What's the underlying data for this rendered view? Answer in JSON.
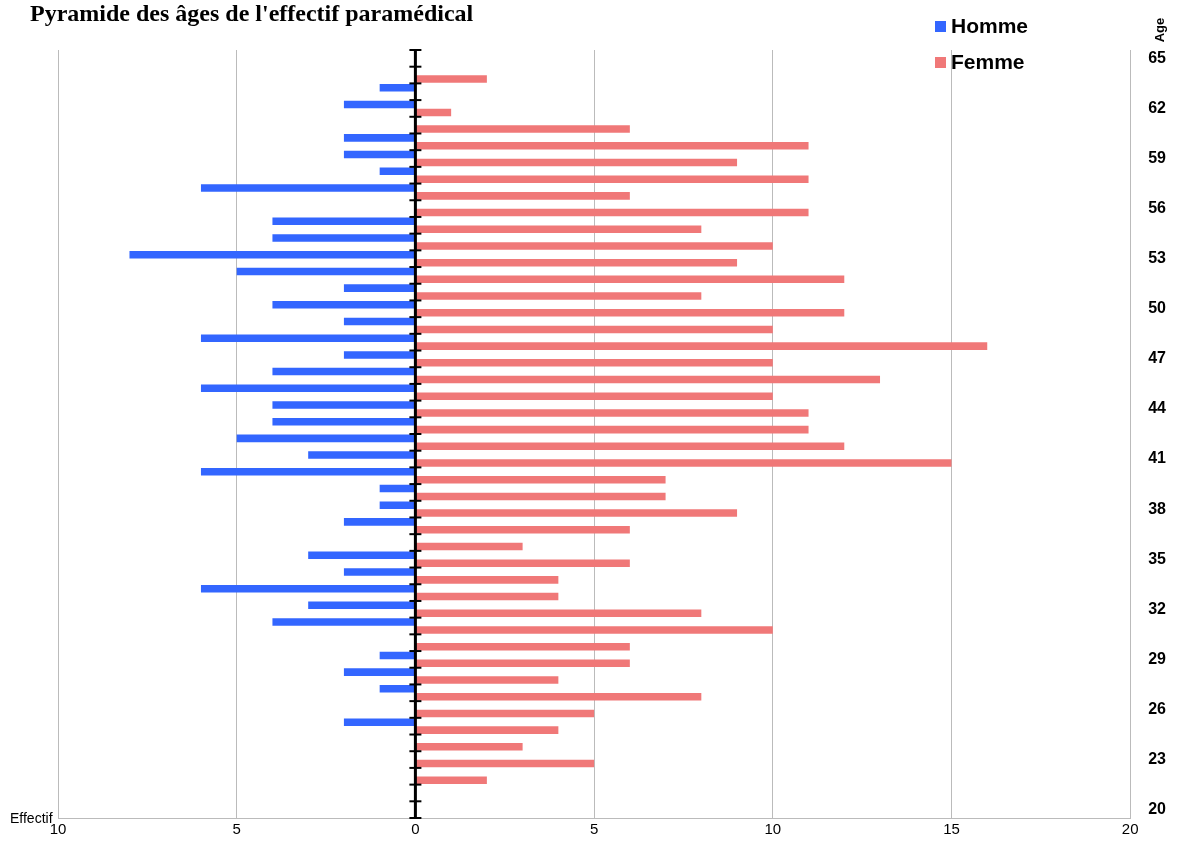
{
  "chart_data": {
    "type": "bar",
    "orientation": "horizontal",
    "title": "Pyramide des âges de l'effectif paramédical",
    "xlabel": "Effectif",
    "ylabel": "Age",
    "categories": [
      "65",
      null,
      null,
      "62",
      null,
      null,
      "59",
      null,
      null,
      "56",
      null,
      null,
      "53",
      null,
      null,
      "50",
      null,
      null,
      "47",
      null,
      null,
      "44",
      null,
      null,
      "41",
      null,
      null,
      "38",
      null,
      null,
      "35",
      null,
      null,
      "32",
      null,
      null,
      "29",
      null,
      null,
      "26",
      null,
      null,
      "23",
      null,
      null,
      "20"
    ],
    "series": [
      {
        "name": "Homme",
        "color": "#3366ff",
        "values": [
          0,
          0,
          -1,
          -2,
          0,
          -2,
          -2,
          -1,
          -6,
          0,
          -4,
          -4,
          -8,
          -5,
          -2,
          -4,
          -2,
          -6,
          -2,
          -4,
          -6,
          -4,
          -4,
          -5,
          -3,
          -6,
          -1,
          -1,
          -2,
          0,
          -3,
          -2,
          -6,
          -3,
          -4,
          0,
          -1,
          -2,
          -1,
          0,
          -2,
          0,
          0,
          0,
          0,
          0
        ]
      },
      {
        "name": "Femme",
        "color": "#f07878",
        "values": [
          0,
          2,
          0,
          1,
          6,
          11,
          9,
          11,
          6,
          11,
          8,
          10,
          9,
          12,
          8,
          12,
          10,
          16,
          10,
          13,
          10,
          11,
          11,
          12,
          15,
          7,
          7,
          9,
          6,
          3,
          6,
          4,
          4,
          8,
          10,
          6,
          6,
          4,
          8,
          5,
          4,
          3,
          5,
          2,
          0,
          0
        ]
      }
    ],
    "xlim": [
      -10,
      20
    ],
    "xticks": [
      {
        "value": -10,
        "label": "10"
      },
      {
        "value": -5,
        "label": "5"
      },
      0,
      5,
      10,
      15,
      20
    ],
    "grid": "x",
    "legend": "top right"
  }
}
